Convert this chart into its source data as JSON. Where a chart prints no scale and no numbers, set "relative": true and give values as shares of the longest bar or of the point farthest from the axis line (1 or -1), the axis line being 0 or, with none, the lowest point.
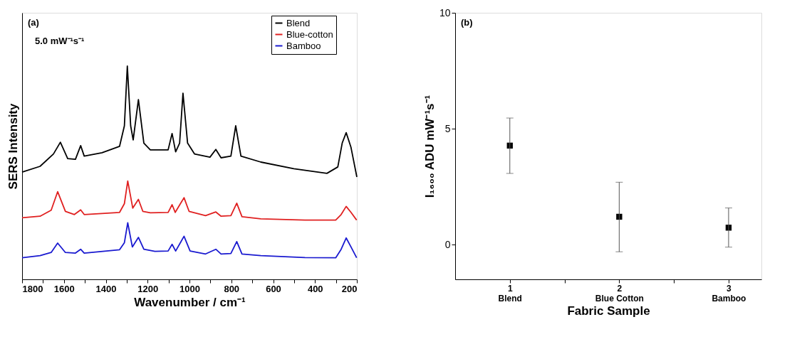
{
  "chart_data": [
    {
      "type": "line",
      "relative": true,
      "xlabel": "Wavenumber / cm⁻¹",
      "ylabel": "SERS Intensity",
      "xlim": [
        1800,
        200
      ],
      "xticks": [
        1800,
        {
          "value": 1700,
          "label": null
        },
        1600,
        {
          "value": 1500,
          "label": null
        },
        1400,
        {
          "value": 1300,
          "label": null
        },
        1200,
        {
          "value": 1100,
          "label": null
        },
        1000,
        {
          "value": 900,
          "label": null
        },
        800,
        {
          "value": 700,
          "label": null
        },
        600,
        {
          "value": 500,
          "label": null
        },
        400,
        {
          "value": 300,
          "label": null
        },
        200
      ],
      "tick_labels": "x",
      "grid": false,
      "legend": "top right",
      "line_style": "solid",
      "annotations": [
        "(a)",
        "5.0 mW⁻¹s⁻¹"
      ],
      "series": [
        {
          "name": "Blend",
          "color": "#000000",
          "x": [
            1800,
            1714,
            1650,
            1617,
            1582,
            1545,
            1520,
            1503,
            1418,
            1334,
            1311,
            1297,
            1281,
            1269,
            1244,
            1218,
            1187,
            1102,
            1083,
            1066,
            1047,
            1031,
            1009,
            976,
            902,
            874,
            849,
            802,
            779,
            754,
            659,
            501,
            343,
            291,
            270,
            251,
            228,
            200
          ],
          "values": [
            0.503,
            0.53,
            0.588,
            0.643,
            0.566,
            0.563,
            0.627,
            0.578,
            0.594,
            0.624,
            0.72,
            1.0,
            0.72,
            0.654,
            0.843,
            0.639,
            0.607,
            0.607,
            0.684,
            0.598,
            0.639,
            0.873,
            0.639,
            0.588,
            0.573,
            0.609,
            0.57,
            0.578,
            0.72,
            0.578,
            0.55,
            0.519,
            0.497,
            0.527,
            0.639,
            0.688,
            0.619,
            0.48
          ]
        },
        {
          "name": "Blue-cotton",
          "color": "#e02020",
          "x": [
            1800,
            1714,
            1661,
            1630,
            1593,
            1550,
            1520,
            1503,
            1334,
            1311,
            1295,
            1271,
            1244,
            1223,
            1187,
            1102,
            1083,
            1068,
            1026,
            1002,
            923,
            874,
            849,
            802,
            774,
            749,
            659,
            448,
            301,
            275,
            251,
            228,
            201
          ],
          "values": [
            0.289,
            0.296,
            0.324,
            0.411,
            0.319,
            0.304,
            0.326,
            0.304,
            0.314,
            0.355,
            0.461,
            0.334,
            0.375,
            0.319,
            0.312,
            0.314,
            0.35,
            0.314,
            0.383,
            0.319,
            0.299,
            0.316,
            0.296,
            0.299,
            0.357,
            0.294,
            0.284,
            0.278,
            0.278,
            0.304,
            0.342,
            0.314,
            0.278
          ]
        },
        {
          "name": "Bamboo",
          "color": "#1a1ad0",
          "x": [
            1800,
            1714,
            1661,
            1630,
            1593,
            1545,
            1520,
            1503,
            1334,
            1311,
            1295,
            1273,
            1244,
            1218,
            1165,
            1102,
            1083,
            1066,
            1026,
            997,
            923,
            874,
            849,
            802,
            774,
            749,
            659,
            448,
            301,
            275,
            251,
            228,
            201
          ],
          "values": [
            0.101,
            0.111,
            0.126,
            0.17,
            0.126,
            0.123,
            0.141,
            0.123,
            0.139,
            0.172,
            0.265,
            0.152,
            0.197,
            0.141,
            0.131,
            0.133,
            0.164,
            0.133,
            0.202,
            0.133,
            0.119,
            0.141,
            0.119,
            0.121,
            0.177,
            0.119,
            0.111,
            0.102,
            0.101,
            0.141,
            0.194,
            0.152,
            0.101
          ]
        }
      ]
    },
    {
      "type": "scatter",
      "xlabel": "Fabric Sample",
      "ylabel": "I₁₆₀₀ ADU mW⁻¹s⁻¹",
      "xlim": [
        0.5,
        3.3
      ],
      "ylim": [
        -1.5,
        10
      ],
      "yticks": [
        0,
        5,
        10
      ],
      "xticks": [
        {
          "value": 1,
          "label": "1\nBlend"
        },
        {
          "value": 1.5,
          "label": null
        },
        {
          "value": 2,
          "label": "2\nBlue Cotton"
        },
        {
          "value": 2.5,
          "label": null
        },
        {
          "value": 3,
          "label": "3\nBamboo"
        }
      ],
      "grid": false,
      "marker": "square",
      "annotations": [
        "(b)"
      ],
      "series": [
        {
          "color": "#000000",
          "x": [
            1,
            2,
            3
          ],
          "values": [
            4.27,
            1.2,
            0.73
          ],
          "errors": [
            [
              3.07,
              5.46
            ],
            [
              -0.31,
              2.69
            ],
            [
              -0.11,
              1.58
            ]
          ]
        }
      ]
    }
  ]
}
